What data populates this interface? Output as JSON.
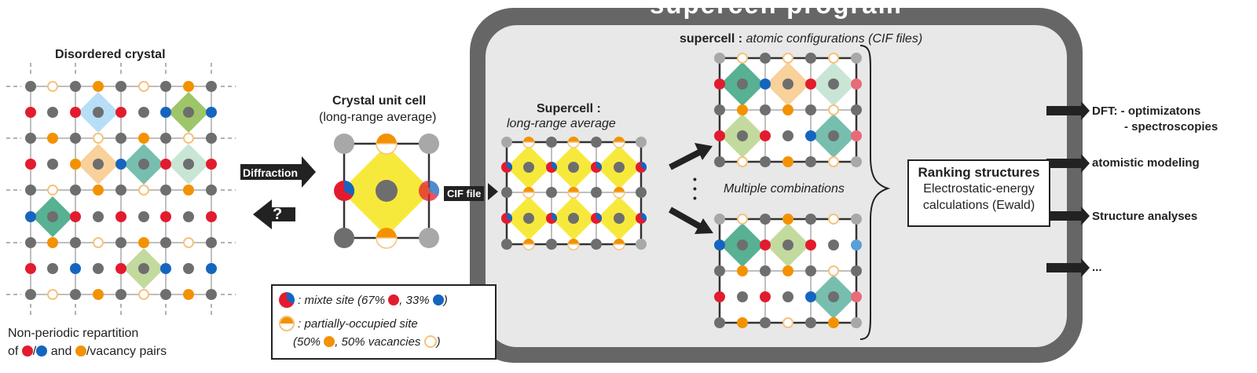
{
  "disordered": {
    "title": "Disordered crystal",
    "caption_line1": "Non-periodic repartition",
    "caption_of": "of",
    "caption_slash": "/",
    "caption_and": "and",
    "caption_tail": "/vacancy pairs"
  },
  "arrows": {
    "diffraction": "Diffraction",
    "question": "?",
    "cif_file": "CIF file"
  },
  "unit_cell": {
    "title": "Crystal unit cell",
    "subtitle": "(long-range average)"
  },
  "legend": {
    "mixte_prefix": ": mixte site (67%",
    "mixte_mid": ", 33%",
    "mixte_end": ")",
    "partial_line1": ": partially-occupied site",
    "partial_prefix": "(50%",
    "partial_mid": ", 50% vacancies",
    "partial_end": ")"
  },
  "program": {
    "title": "supercell program",
    "supercell_title": "Supercell :",
    "supercell_subtitle": "long-range average",
    "configs_bold": "supercell :",
    "configs_italic": "atomic configurations (CIF files)",
    "ellipsis_dots": "•\n•\n•",
    "multiple": "Multiple combinations"
  },
  "ranking": {
    "title": "Ranking structures",
    "line2": "Electrostatic-energy",
    "line3": "calculations (Ewald)"
  },
  "outputs": {
    "dft_label": "DFT:",
    "dft_item1": "- optimizatons",
    "dft_item2": "- spectroscopies",
    "atomistic": "atomistic modeling",
    "structure": "Structure analyses",
    "more": "..."
  },
  "colors": {
    "red": "#e21c2e",
    "blue": "#1565c0",
    "orange": "#f39200",
    "orange_light": "#f6c27e",
    "gray_atom": "#6e6e6e",
    "yellow": "#f7e93c",
    "frame_gray": "#666666",
    "panel_gray": "#e8e8e8"
  },
  "icons": [
    "arrow-right-icon",
    "arrow-left-icon",
    "mixed-site-icon",
    "partial-site-icon",
    "brace-icon"
  ]
}
